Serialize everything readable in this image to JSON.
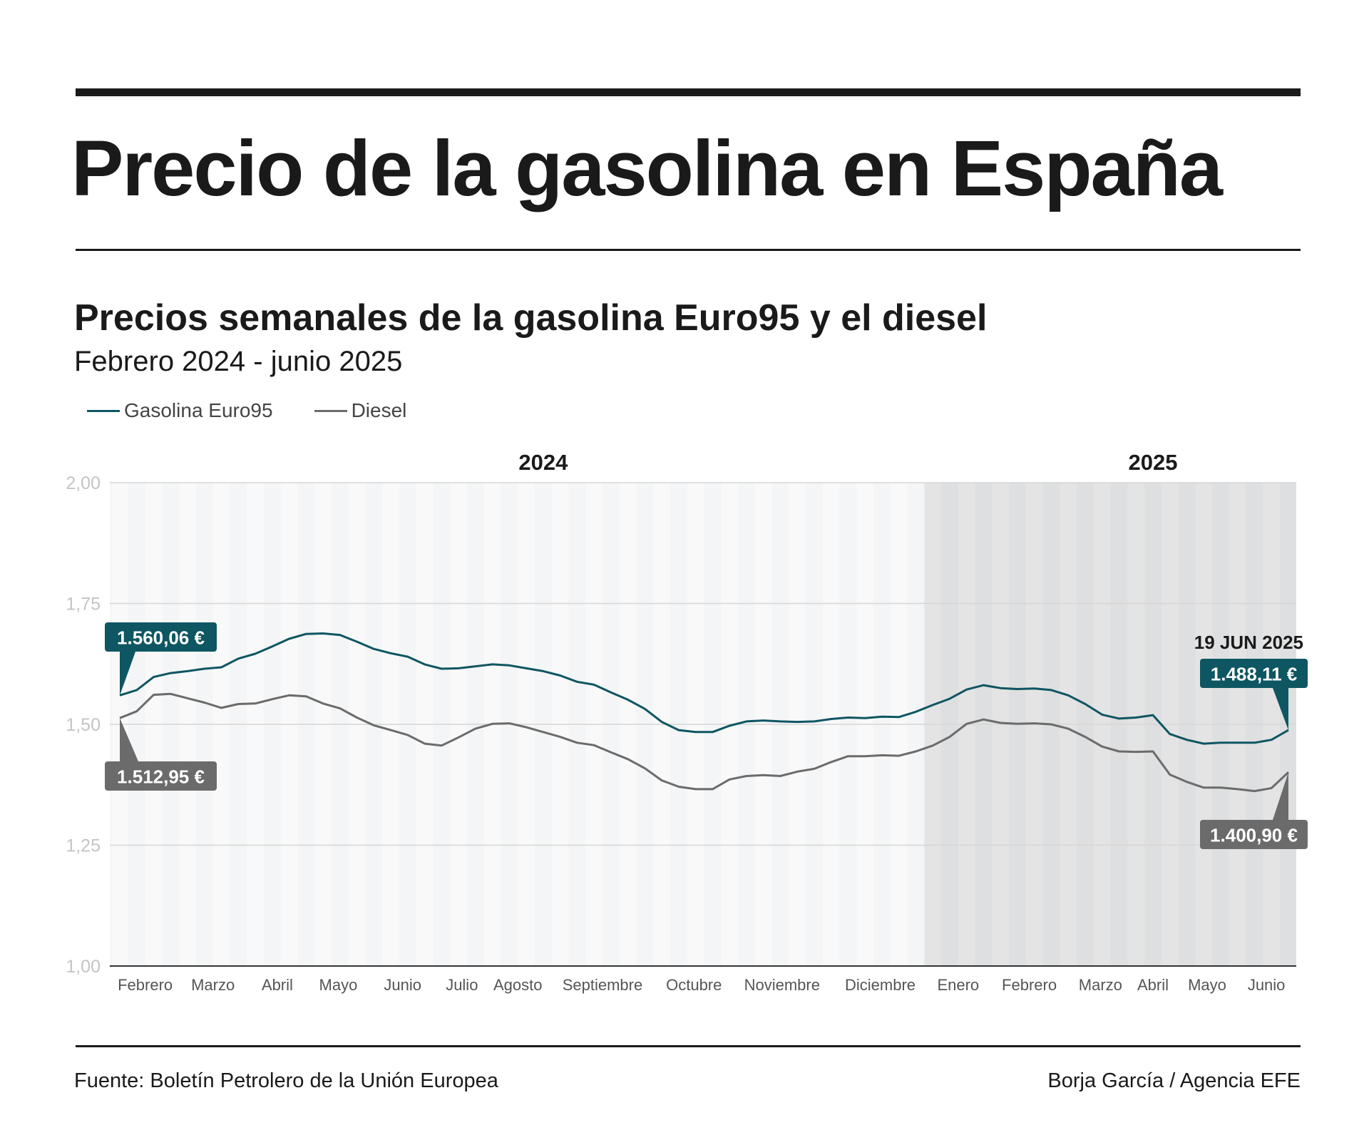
{
  "header": {
    "title": "Precio de la gasolina en España",
    "subtitle": "Precios semanales de la gasolina Euro95 y el diesel",
    "period": "Febrero 2024 - junio 2025"
  },
  "footer": {
    "source": "Fuente: Boletín Petrolero de la Unión Europea",
    "credit": "Borja García / Agencia EFE"
  },
  "colors": {
    "gasolina": "#0e5662",
    "diesel": "#6b6b6b",
    "shade_2025": "#dedfe0",
    "background_2024": "#f4f5f6"
  },
  "chart_data": {
    "type": "line",
    "title": "Precios semanales de la gasolina Euro95 y el diesel",
    "subtitle": "Febrero 2024 - junio 2025",
    "ylim": [
      1.0,
      2.0
    ],
    "yticks": [
      "1,00",
      "1,25",
      "1,50",
      "1,75",
      "2,00"
    ],
    "ytick_values": [
      1.0,
      1.25,
      1.5,
      1.75,
      2.0
    ],
    "grid": true,
    "legend_position": "top-left",
    "year_labels": [
      {
        "label": "2024",
        "week": 25
      },
      {
        "label": "2025",
        "week": 61
      }
    ],
    "shaded_from_week": 48,
    "month_labels": [
      {
        "label": "Febrero",
        "week": 1.5
      },
      {
        "label": "Marzo",
        "week": 5.5
      },
      {
        "label": "Abril",
        "week": 9.3
      },
      {
        "label": "Mayo",
        "week": 12.9
      },
      {
        "label": "Junio",
        "week": 16.7
      },
      {
        "label": "Julio",
        "week": 20.2
      },
      {
        "label": "Agosto",
        "week": 23.5
      },
      {
        "label": "Septiembre",
        "week": 28.5
      },
      {
        "label": "Octubre",
        "week": 33.9
      },
      {
        "label": "Noviembre",
        "week": 39.1
      },
      {
        "label": "Diciembre",
        "week": 44.9
      },
      {
        "label": "Enero",
        "week": 49.5
      },
      {
        "label": "Febrero",
        "week": 53.7
      },
      {
        "label": "Marzo",
        "week": 57.9
      },
      {
        "label": "Abril",
        "week": 61
      },
      {
        "label": "Mayo",
        "week": 64.2
      },
      {
        "label": "Junio",
        "week": 67.7
      }
    ],
    "series": [
      {
        "name": "Gasolina Euro95",
        "color": "#0e5662",
        "values": [
          1.56,
          1.571,
          1.598,
          1.606,
          1.61,
          1.615,
          1.618,
          1.636,
          1.646,
          1.661,
          1.677,
          1.687,
          1.688,
          1.685,
          1.671,
          1.656,
          1.647,
          1.64,
          1.624,
          1.615,
          1.616,
          1.62,
          1.624,
          1.622,
          1.616,
          1.61,
          1.601,
          1.588,
          1.582,
          1.566,
          1.551,
          1.532,
          1.505,
          1.488,
          1.484,
          1.484,
          1.497,
          1.506,
          1.508,
          1.506,
          1.505,
          1.506,
          1.511,
          1.514,
          1.513,
          1.516,
          1.515,
          1.526,
          1.54,
          1.553,
          1.572,
          1.581,
          1.575,
          1.573,
          1.574,
          1.571,
          1.56,
          1.542,
          1.52,
          1.512,
          1.514,
          1.519,
          1.48,
          1.468,
          1.46,
          1.462,
          1.462,
          1.462,
          1.468,
          1.488
        ]
      },
      {
        "name": "Diesel",
        "color": "#6b6b6b",
        "values": [
          1.513,
          1.527,
          1.561,
          1.563,
          1.554,
          1.545,
          1.534,
          1.542,
          1.543,
          1.552,
          1.56,
          1.558,
          1.543,
          1.533,
          1.514,
          1.498,
          1.488,
          1.478,
          1.46,
          1.456,
          1.473,
          1.491,
          1.501,
          1.502,
          1.494,
          1.484,
          1.474,
          1.462,
          1.457,
          1.442,
          1.428,
          1.409,
          1.384,
          1.371,
          1.366,
          1.366,
          1.386,
          1.393,
          1.395,
          1.393,
          1.402,
          1.408,
          1.422,
          1.434,
          1.434,
          1.436,
          1.435,
          1.444,
          1.456,
          1.474,
          1.501,
          1.51,
          1.503,
          1.501,
          1.502,
          1.5,
          1.491,
          1.474,
          1.454,
          1.444,
          1.443,
          1.444,
          1.396,
          1.381,
          1.369,
          1.369,
          1.366,
          1.362,
          1.368,
          1.401
        ]
      }
    ],
    "annotations": {
      "date_label": "19 JUN 2025",
      "gasolina_start": "1.560,06 €",
      "diesel_start": "1.512,95 €",
      "gasolina_end": "1.488,11 €",
      "diesel_end": "1.400,90 €"
    }
  }
}
